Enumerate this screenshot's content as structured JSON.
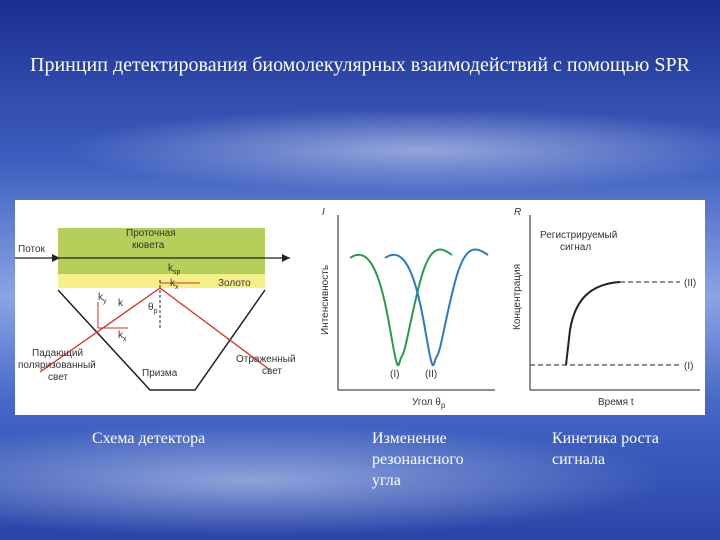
{
  "header": {
    "title": "Принцип детектирования биомолекулярных взаимодействий с помощью SPR"
  },
  "figure": {
    "detector": {
      "flow": "Поток",
      "cell": [
        "Проточная",
        "кювета"
      ],
      "gold": "Золото",
      "k_sp": {
        "base": "k",
        "sub": "sp"
      },
      "k_x_top": {
        "base": "k",
        "sub": "x"
      },
      "k_y": {
        "base": "k",
        "sub": "y"
      },
      "k": "k",
      "k_x": {
        "base": "k",
        "sub": "x"
      },
      "theta": {
        "base": "θ",
        "sub": "p"
      },
      "incident": [
        "Падающий",
        "поляризованный",
        "свет"
      ],
      "prism": "Призма",
      "reflected": [
        "Отраженный",
        "свет"
      ]
    },
    "angle_plot": {
      "y_symbol": "I",
      "y_label": "Интенсивность",
      "curve_1": "(I)",
      "curve_2": "(II)",
      "x_label": {
        "base": "Угол θ",
        "sub": "р"
      }
    },
    "kinetics_plot": {
      "y_symbol": "R",
      "y_label": "Концентрация",
      "signal": [
        "Регистрируемый",
        "сигнал"
      ],
      "level_2": "(II)",
      "level_1": "(I)",
      "x_label": "Время t"
    }
  },
  "captions": [
    "Схема детектора",
    "Изменение резонансного угла",
    "Кинетика роста сигнала"
  ]
}
